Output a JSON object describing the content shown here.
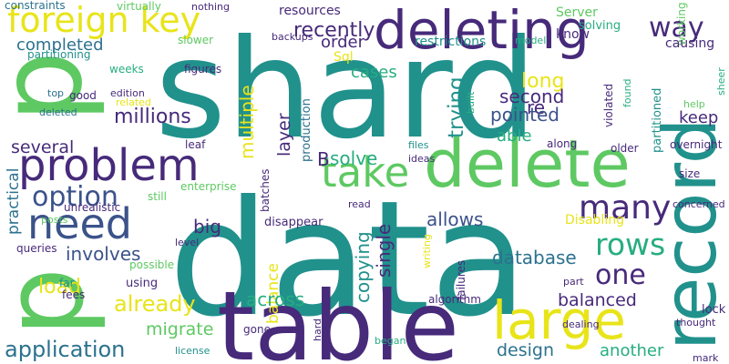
{
  "palette": {
    "dark_purple": "#472a7a",
    "indigo": "#3b528b",
    "blue": "#2c728e",
    "teal": "#21918c",
    "green": "#27ad81",
    "light_green": "#5ec962",
    "lime": "#addc30",
    "yellow": "#e8e419"
  },
  "words": [
    {
      "text": "shard",
      "color": "#21918c"
    },
    {
      "text": "data",
      "color": "#21918c"
    },
    {
      "text": "table",
      "color": "#472a7a"
    },
    {
      "text": "p",
      "color": "#5ec962"
    },
    {
      "text": "p",
      "color": "#5ec962"
    },
    {
      "text": "delete",
      "color": "#5ec962"
    },
    {
      "text": "record",
      "color": "#21918c"
    },
    {
      "text": "large",
      "color": "#e8e419"
    },
    {
      "text": "deleting",
      "color": "#472a7a"
    },
    {
      "text": "foreign key",
      "color": "#e8e419"
    },
    {
      "text": "problem",
      "color": "#472a7a"
    },
    {
      "text": "need",
      "color": "#3b528b"
    },
    {
      "text": "take",
      "color": "#5ec962"
    },
    {
      "text": "option",
      "color": "#3b528b"
    },
    {
      "text": "many",
      "color": "#472a7a"
    },
    {
      "text": "rows",
      "color": "#27ad81"
    },
    {
      "text": "one",
      "color": "#472a7a"
    },
    {
      "text": "already",
      "color": "#e8e419"
    },
    {
      "text": "application",
      "color": "#2c728e"
    },
    {
      "text": "way",
      "color": "#472a7a"
    },
    {
      "text": "recently",
      "color": "#472a7a"
    },
    {
      "text": "completed",
      "color": "#2c728e"
    },
    {
      "text": "order",
      "color": "#472a7a"
    },
    {
      "text": "long",
      "color": "#e8e419"
    },
    {
      "text": "second",
      "color": "#472a7a"
    },
    {
      "text": "re",
      "color": "#472a7a"
    },
    {
      "text": "keep",
      "color": "#472a7a"
    },
    {
      "text": "pointed",
      "color": "#3b528b"
    },
    {
      "text": "millions",
      "color": "#472a7a"
    },
    {
      "text": "multiple",
      "color": "#e8e419"
    },
    {
      "text": "layer",
      "color": "#472a7a"
    },
    {
      "text": "trying",
      "color": "#21918c"
    },
    {
      "text": "able",
      "color": "#27ad81"
    },
    {
      "text": "solve",
      "color": "#27ad81"
    },
    {
      "text": "B",
      "color": "#472a7a"
    },
    {
      "text": "several",
      "color": "#472a7a"
    },
    {
      "text": "practical",
      "color": "#2c728e"
    },
    {
      "text": "big",
      "color": "#472a7a"
    },
    {
      "text": "involves",
      "color": "#3b528b"
    },
    {
      "text": "allows",
      "color": "#3b528b"
    },
    {
      "text": "database",
      "color": "#2c728e"
    },
    {
      "text": "single",
      "color": "#472a7a"
    },
    {
      "text": "copying",
      "color": "#21918c"
    },
    {
      "text": "balance",
      "color": "#e8e419"
    },
    {
      "text": "load",
      "color": "#e8e419"
    },
    {
      "text": "across",
      "color": "#27ad81"
    },
    {
      "text": "balanced",
      "color": "#472a7a"
    },
    {
      "text": "migrate",
      "color": "#5ec962"
    },
    {
      "text": "design",
      "color": "#2c728e"
    },
    {
      "text": "another",
      "color": "#27ad81"
    },
    {
      "text": "cases",
      "color": "#27ad81"
    },
    {
      "text": "resources",
      "color": "#472a7a"
    },
    {
      "text": "restrictions",
      "color": "#21918c"
    },
    {
      "text": "constraints",
      "color": "#2c728e"
    },
    {
      "text": "virtually",
      "color": "#5ec962"
    },
    {
      "text": "nothing",
      "color": "#472a7a"
    },
    {
      "text": "Server",
      "color": "#5ec962"
    },
    {
      "text": "solving",
      "color": "#27ad81"
    },
    {
      "text": "working",
      "color": "#5ec962"
    },
    {
      "text": "know",
      "color": "#472a7a"
    },
    {
      "text": "causing",
      "color": "#472a7a"
    },
    {
      "text": "backups",
      "color": "#472a7a"
    },
    {
      "text": "model",
      "color": "#27ad81"
    },
    {
      "text": "slower",
      "color": "#5ec962"
    },
    {
      "text": "partitioning",
      "color": "#21918c"
    },
    {
      "text": "Sql",
      "color": "#e8e419"
    },
    {
      "text": "weeks",
      "color": "#27ad81"
    },
    {
      "text": "figures",
      "color": "#472a7a"
    },
    {
      "text": "edition",
      "color": "#472a7a"
    },
    {
      "text": "top",
      "color": "#2c728e"
    },
    {
      "text": "good",
      "color": "#472a7a"
    },
    {
      "text": "related",
      "color": "#e8e419"
    },
    {
      "text": "deleted",
      "color": "#2c728e"
    },
    {
      "text": "built",
      "color": "#27ad81"
    },
    {
      "text": "violated",
      "color": "#472a7a"
    },
    {
      "text": "found",
      "color": "#27ad81"
    },
    {
      "text": "partitioned",
      "color": "#21918c"
    },
    {
      "text": "help",
      "color": "#5ec962"
    },
    {
      "text": "sheer",
      "color": "#27ad81"
    },
    {
      "text": "overnight",
      "color": "#472a7a"
    },
    {
      "text": "leaf",
      "color": "#472a7a"
    },
    {
      "text": "along",
      "color": "#472a7a"
    },
    {
      "text": "older",
      "color": "#472a7a"
    },
    {
      "text": "files",
      "color": "#21918c"
    },
    {
      "text": "ideas",
      "color": "#472a7a"
    },
    {
      "text": "size",
      "color": "#472a7a"
    },
    {
      "text": "production",
      "color": "#2c728e"
    },
    {
      "text": "enterprise",
      "color": "#5ec962"
    },
    {
      "text": "still",
      "color": "#5ec962"
    },
    {
      "text": "posts",
      "color": "#5ec962"
    },
    {
      "text": "unrealistic",
      "color": "#472a7a"
    },
    {
      "text": "batches",
      "color": "#472a7a"
    },
    {
      "text": "Disabling",
      "color": "#e8e419"
    },
    {
      "text": "concerned",
      "color": "#472a7a"
    },
    {
      "text": "disappear",
      "color": "#472a7a"
    },
    {
      "text": "read",
      "color": "#472a7a"
    },
    {
      "text": "queries",
      "color": "#472a7a"
    },
    {
      "text": "level",
      "color": "#472a7a"
    },
    {
      "text": "possible",
      "color": "#5ec962"
    },
    {
      "text": "far",
      "color": "#21918c"
    },
    {
      "text": "fees",
      "color": "#472a7a"
    },
    {
      "text": "using",
      "color": "#472a7a"
    },
    {
      "text": "writing",
      "color": "#e8e419"
    },
    {
      "text": "failures",
      "color": "#472a7a"
    },
    {
      "text": "part",
      "color": "#472a7a"
    },
    {
      "text": "algorithm",
      "color": "#472a7a"
    },
    {
      "text": "dealing",
      "color": "#472a7a"
    },
    {
      "text": "lock",
      "color": "#472a7a"
    },
    {
      "text": "thought",
      "color": "#472a7a"
    },
    {
      "text": "mark",
      "color": "#472a7a"
    },
    {
      "text": "gone",
      "color": "#472a7a"
    },
    {
      "text": "hard",
      "color": "#472a7a"
    },
    {
      "text": "began",
      "color": "#27ad81"
    },
    {
      "text": "license",
      "color": "#21918c"
    }
  ]
}
